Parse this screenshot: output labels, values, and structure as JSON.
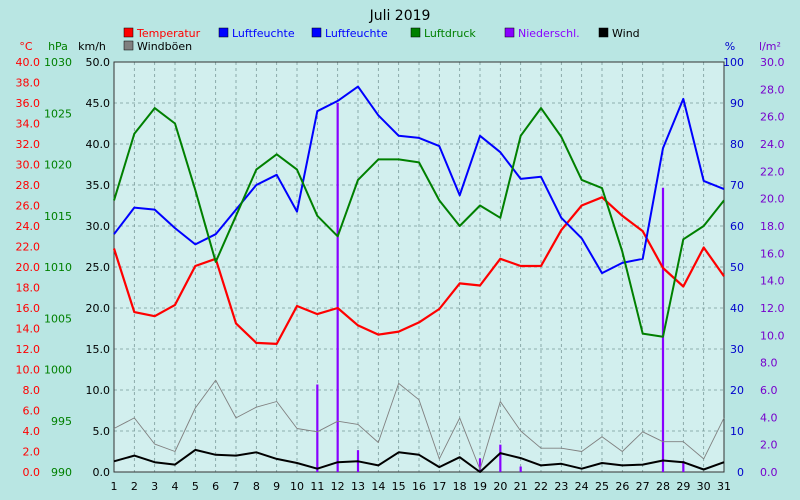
{
  "chart_data": {
    "type": "line",
    "title": "Juli 2019",
    "unit_labels": {
      "temp": "°C",
      "pressure": "hPa",
      "wind": "km/h",
      "humidity": "%",
      "rain": "l/m²"
    },
    "x": [
      1,
      2,
      3,
      4,
      5,
      6,
      7,
      8,
      9,
      10,
      11,
      12,
      13,
      14,
      15,
      16,
      17,
      18,
      19,
      20,
      21,
      22,
      23,
      24,
      25,
      26,
      27,
      28,
      29,
      30,
      31
    ],
    "axes": {
      "temp": {
        "min": 0,
        "max": 40,
        "step": 2,
        "color": "#ff0000"
      },
      "pressure": {
        "min": 990,
        "max": 1030,
        "step": 5,
        "color": "#008000"
      },
      "wind": {
        "min": 0,
        "max": 50,
        "step": 5,
        "color": "#000000"
      },
      "humidity": {
        "min": 0,
        "max": 100,
        "step": 10,
        "color": "#0000cc"
      },
      "rain": {
        "min": 0,
        "max": 30,
        "step": 2,
        "color": "#7700cc"
      }
    },
    "legend": [
      {
        "name": "Temperatur",
        "color": "#ff0000"
      },
      {
        "name": "Luftfeuchte",
        "color": "#0000ff"
      },
      {
        "name": "Luftfeuchte",
        "color": "#0000ff"
      },
      {
        "name": "Luftdruck",
        "color": "#008000"
      },
      {
        "name": "Niederschl.",
        "color": "#8800ff"
      },
      {
        "name": "Wind",
        "color": "#000000"
      },
      {
        "name": "Windböen",
        "color": "#808080"
      }
    ],
    "series": [
      {
        "name": "Temperatur",
        "axis": "temp",
        "color": "#ff0000",
        "width": 2.2,
        "values": [
          21.8,
          15.6,
          15.2,
          16.3,
          20.1,
          20.8,
          14.5,
          12.6,
          12.5,
          16.2,
          15.4,
          16.0,
          14.3,
          13.4,
          13.7,
          14.6,
          15.9,
          18.4,
          18.2,
          20.8,
          20.1,
          20.1,
          23.6,
          26.0,
          26.8,
          25.0,
          23.5,
          19.9,
          18.1,
          21.9,
          19.1
        ]
      },
      {
        "name": "Luftfeuchte",
        "axis": "humidity",
        "color": "#0000ff",
        "width": 2.0,
        "values": [
          58,
          64.5,
          64,
          59.5,
          55.5,
          58,
          64,
          70,
          72.5,
          63.5,
          88,
          90.5,
          94,
          87,
          82,
          81.5,
          79.5,
          67.5,
          82,
          78,
          71.5,
          72,
          62,
          57,
          48.5,
          51,
          52,
          79,
          91,
          71,
          69
        ]
      },
      {
        "name": "Luftdruck",
        "axis": "pressure",
        "color": "#008000",
        "width": 2.0,
        "values": [
          1016.5,
          1023,
          1025.5,
          1024,
          1017.5,
          1010.5,
          1015,
          1019.5,
          1021,
          1019.5,
          1015,
          1013,
          1018.5,
          1020.5,
          1020.5,
          1020.2,
          1016.5,
          1014,
          1016,
          1014.8,
          1022.8,
          1025.5,
          1022.7,
          1018.5,
          1017.7,
          1011.5,
          1003.5,
          1003.2,
          1012.7,
          1014,
          1016.5
        ]
      },
      {
        "name": "Windböen",
        "axis": "wind",
        "color": "#808080",
        "width": 0.9,
        "values": [
          5.3,
          6.6,
          3.4,
          2.5,
          7.8,
          11.2,
          6.6,
          7.9,
          8.6,
          5.3,
          4.9,
          6.2,
          5.8,
          3.6,
          10.8,
          8.8,
          1.6,
          6.6,
          0.3,
          8.6,
          5.0,
          2.9,
          2.9,
          2.5,
          4.3,
          2.5,
          4.9,
          3.7,
          3.7,
          1.6,
          6.6
        ]
      },
      {
        "name": "Wind",
        "axis": "wind",
        "color": "#000000",
        "width": 2.0,
        "values": [
          1.3,
          2.0,
          1.2,
          0.9,
          2.7,
          2.1,
          2.0,
          2.4,
          1.6,
          1.1,
          0.4,
          1.2,
          1.3,
          0.8,
          2.4,
          2.1,
          0.6,
          1.8,
          0.0,
          2.3,
          1.7,
          0.8,
          1.0,
          0.4,
          1.1,
          0.8,
          0.9,
          1.4,
          1.2,
          0.3,
          1.2
        ]
      }
    ],
    "rain": {
      "name": "Niederschl.",
      "axis": "rain",
      "color": "#8800ff",
      "values": [
        0,
        0,
        0,
        0,
        0,
        0,
        0,
        0,
        0,
        0,
        6.4,
        27.0,
        1.6,
        0,
        0,
        0,
        0,
        0,
        1.0,
        2.0,
        0.4,
        0,
        0,
        0,
        0,
        0,
        0,
        20.8,
        0.8,
        0,
        0
      ]
    },
    "grid": true
  }
}
